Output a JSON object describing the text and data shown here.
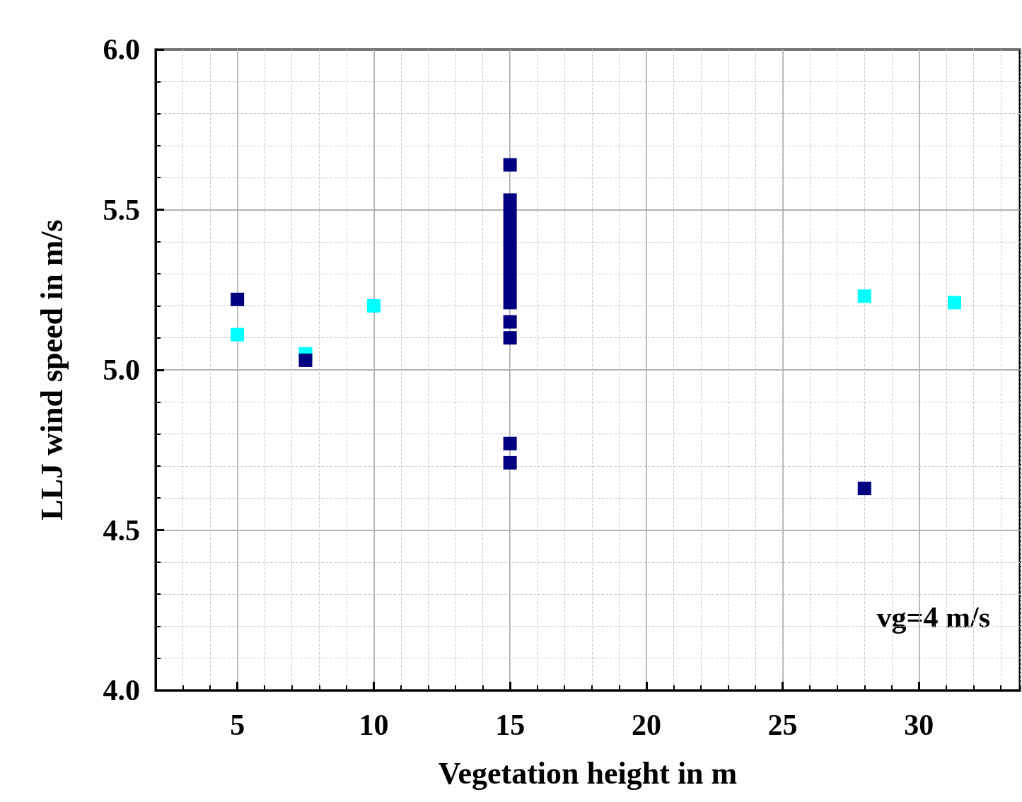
{
  "chart_data": {
    "type": "scatter",
    "xlabel": "Vegetation height in m",
    "ylabel": "LLJ wind speed in m/s",
    "annotations": [
      "vg=4 m/s"
    ],
    "series": [
      {
        "color": "#000080",
        "x": [
          5,
          7.5,
          15,
          15,
          15,
          15,
          15,
          15,
          15,
          15,
          15,
          15,
          15,
          15,
          15,
          15,
          28
        ],
        "values": [
          5.22,
          5.03,
          5.64,
          5.53,
          5.49,
          5.45,
          5.41,
          5.37,
          5.33,
          5.29,
          5.25,
          5.21,
          5.15,
          5.1,
          4.77,
          4.71,
          4.63
        ]
      },
      {
        "color": "#00ffff",
        "x": [
          5,
          7.5,
          10,
          28,
          31.3
        ],
        "values": [
          5.11,
          5.05,
          5.2,
          5.23,
          5.21
        ]
      }
    ],
    "xlim": [
      2,
      33.7
    ],
    "xticks": [
      5,
      10,
      15,
      20,
      25,
      30
    ],
    "ylim": [
      4,
      6
    ],
    "yticks": [
      {
        "value": 4,
        "label": "4.0"
      },
      {
        "value": 4.5,
        "label": "4.5"
      },
      {
        "value": 5,
        "label": "5.0"
      },
      {
        "value": 5.5,
        "label": "5.5"
      },
      {
        "value": 6,
        "label": "6.0"
      }
    ],
    "grid": true,
    "marker": "square"
  }
}
